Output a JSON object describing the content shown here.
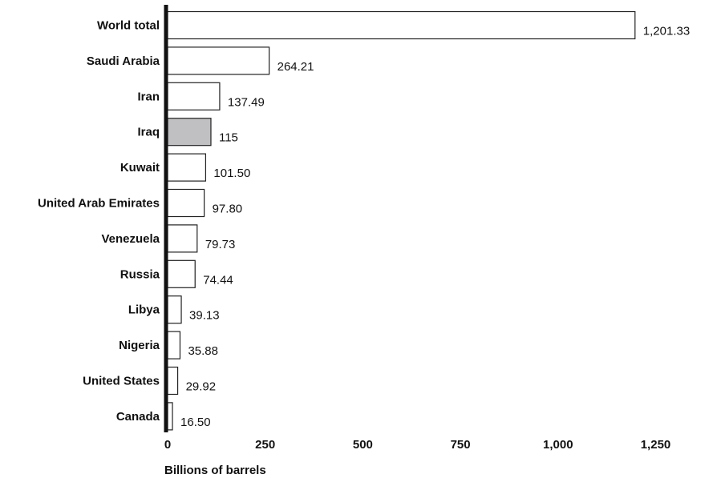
{
  "chart_data": {
    "type": "bar",
    "orientation": "horizontal",
    "title": "",
    "xlabel": "Billions of barrels",
    "ylabel": "",
    "xlim": [
      0,
      1250
    ],
    "xticks": [
      0,
      250,
      500,
      750,
      1000,
      1250
    ],
    "xtick_labels": [
      "0",
      "250",
      "500",
      "750",
      "1,000",
      "1,250"
    ],
    "grid": false,
    "legend": "none",
    "categories": [
      "World total",
      "Saudi Arabia",
      "Iran",
      "Iraq",
      "Kuwait",
      "United Arab Emirates",
      "Venezuela",
      "Russia",
      "Libya",
      "Nigeria",
      "United States",
      "Canada"
    ],
    "values": [
      1201.33,
      264.21,
      137.49,
      115,
      101.5,
      97.8,
      79.73,
      74.44,
      39.13,
      35.88,
      29.92,
      16.5
    ],
    "value_labels": [
      "1,201.33",
      "264.21",
      "137.49",
      "115",
      "101.50",
      "97.80",
      "79.73",
      "74.44",
      "39.13",
      "35.88",
      "29.92",
      "16.50"
    ],
    "highlighted_category": "Iraq",
    "colors": {
      "bar_fill": "#ffffff",
      "bar_highlight": "#c0c0c2",
      "bar_stroke": "#222222",
      "axis": "#111111",
      "text": "#111111"
    }
  }
}
